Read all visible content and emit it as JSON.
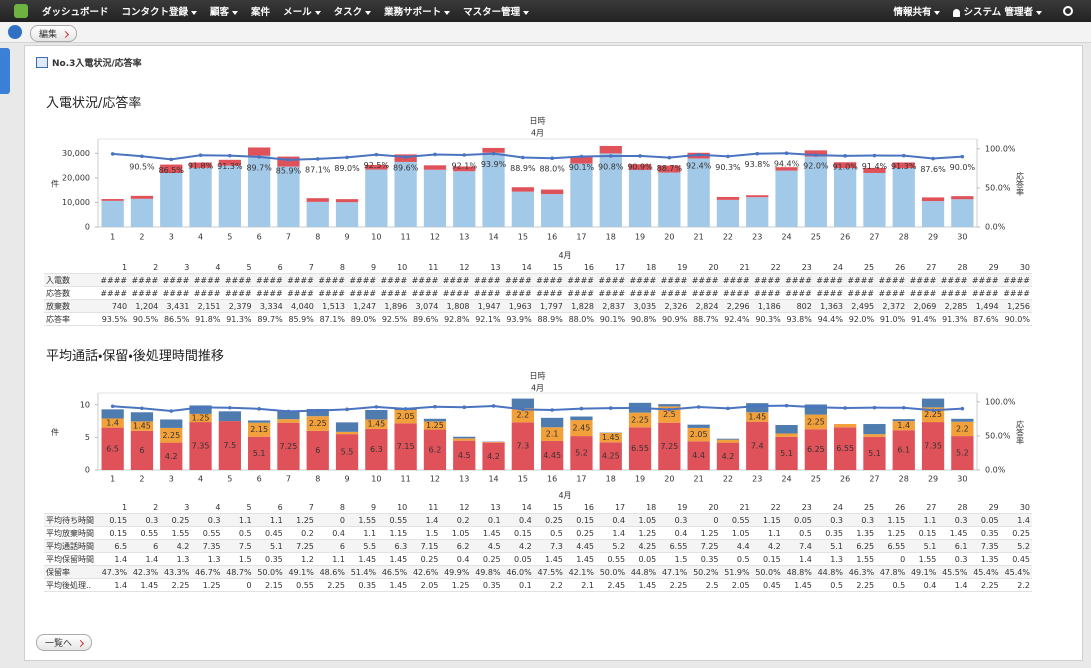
{
  "nav": {
    "items": [
      {
        "label": "ダッシュボード",
        "dropdown": false
      },
      {
        "label": "コンタクト登録",
        "dropdown": true
      },
      {
        "label": "顧客",
        "dropdown": true
      },
      {
        "label": "案件",
        "dropdown": false
      },
      {
        "label": "メール",
        "dropdown": true
      },
      {
        "label": "タスク",
        "dropdown": true
      },
      {
        "label": "業務サポート",
        "dropdown": true
      },
      {
        "label": "マスター管理",
        "dropdown": true
      }
    ],
    "right": [
      {
        "label": "情報共有",
        "dropdown": true
      },
      {
        "label": "システム 管理者",
        "dropdown": true
      }
    ]
  },
  "toolbar": {
    "edit": "編集"
  },
  "panel_title": "No.3入電状況/応答率",
  "sections": [
    {
      "heading": "入電状況/応答率",
      "table": {
        "header": "4月",
        "columns": [
          1,
          2,
          3,
          4,
          5,
          6,
          7,
          8,
          9,
          10,
          11,
          12,
          13,
          14,
          15,
          16,
          17,
          18,
          19,
          20,
          21,
          22,
          23,
          24,
          25,
          26,
          27,
          28,
          29,
          30
        ],
        "rows": [
          {
            "label": "入電数",
            "cells": [
              "####",
              "####",
              "####",
              "####",
              "####",
              "####",
              "####",
              "####",
              "####",
              "####",
              "####",
              "####",
              "####",
              "####",
              "####",
              "####",
              "####",
              "####",
              "####",
              "####",
              "####",
              "####",
              "####",
              "####",
              "####",
              "####",
              "####",
              "####",
              "####",
              "####"
            ]
          },
          {
            "label": "応答数",
            "cells": [
              "####",
              "####",
              "####",
              "####",
              "####",
              "####",
              "####",
              "####",
              "####",
              "####",
              "####",
              "####",
              "####",
              "####",
              "####",
              "####",
              "####",
              "####",
              "####",
              "####",
              "####",
              "####",
              "####",
              "####",
              "####",
              "####",
              "####",
              "####",
              "####",
              "####"
            ]
          },
          {
            "label": "放棄数",
            "cells": [
              "740",
              "1,204",
              "3,431",
              "2,151",
              "2,379",
              "3,334",
              "4,040",
              "1,513",
              "1,247",
              "1,896",
              "3,074",
              "1,808",
              "1,947",
              "1,963",
              "1,797",
              "1,828",
              "2,837",
              "3,035",
              "2,326",
              "2,824",
              "2,296",
              "1,186",
              "802",
              "1,363",
              "2,495",
              "2,372",
              "2,069",
              "2,285",
              "1,494",
              "1,256"
            ]
          },
          {
            "label": "応答率",
            "cells": [
              "93.5%",
              "90.5%",
              "86.5%",
              "91.8%",
              "91.3%",
              "89.7%",
              "85.9%",
              "87.1%",
              "89.0%",
              "92.5%",
              "89.6%",
              "92.8%",
              "92.1%",
              "93.9%",
              "88.9%",
              "88.0%",
              "90.1%",
              "90.8%",
              "90.9%",
              "88.7%",
              "92.4%",
              "90.3%",
              "93.8%",
              "94.4%",
              "92.0%",
              "91.0%",
              "91.4%",
              "91.3%",
              "87.6%",
              "90.0%"
            ]
          }
        ]
      }
    },
    {
      "heading": "平均通話・保留・後処理時間推移",
      "table": {
        "header": "4月",
        "columns": [
          1,
          2,
          3,
          4,
          5,
          6,
          7,
          8,
          9,
          10,
          11,
          12,
          13,
          14,
          15,
          16,
          17,
          18,
          19,
          20,
          21,
          22,
          23,
          24,
          25,
          26,
          27,
          28,
          29,
          30
        ],
        "rows": [
          {
            "label": "平均待ち時間",
            "cells": [
              0.15,
              0.3,
              0.25,
              0.3,
              1.1,
              1.1,
              1.25,
              0,
              1.55,
              0.55,
              1.4,
              0.2,
              0.1,
              0.4,
              0.25,
              0.15,
              0.4,
              1.05,
              0.3,
              0,
              0.55,
              1.15,
              0.05,
              0.3,
              0.3,
              1.15,
              1.1,
              0.3,
              0.05,
              1.4
            ]
          },
          {
            "label": "平均放棄時間",
            "cells": [
              0.15,
              0.55,
              1.55,
              0.55,
              0.5,
              0.45,
              0.2,
              0.4,
              1.1,
              1.15,
              1.5,
              1.05,
              1.45,
              0.15,
              0.5,
              0.25,
              1.4,
              1.25,
              0.4,
              1.25,
              1.05,
              1.1,
              0.5,
              0.35,
              1.35,
              1.25,
              0.15,
              1.45,
              0.35,
              0.25
            ]
          },
          {
            "label": "平均通話時間",
            "cells": [
              6.5,
              6,
              4.2,
              7.35,
              7.5,
              5.1,
              7.25,
              6,
              5.5,
              6.3,
              7.15,
              6.2,
              4.5,
              4.2,
              7.3,
              4.45,
              5.2,
              4.25,
              6.55,
              7.25,
              4.4,
              4.2,
              7.4,
              5.1,
              6.25,
              6.55,
              5.1,
              6.1,
              7.35,
              5.2
            ]
          },
          {
            "label": "平均保留時間",
            "cells": [
              1.4,
              1.4,
              1.3,
              1.3,
              1.5,
              0.35,
              1.2,
              1.1,
              1.45,
              1.45,
              0.25,
              0.4,
              0.25,
              0.05,
              1.45,
              1.45,
              0.55,
              0.05,
              1.5,
              0.35,
              0.5,
              0.15,
              1.4,
              1.3,
              1.55,
              0,
              1.55,
              0.3,
              1.35,
              0.45
            ]
          },
          {
            "label": "保留率",
            "cells": [
              "47.3%",
              "42.3%",
              "43.3%",
              "46.7%",
              "48.7%",
              "50.0%",
              "49.1%",
              "48.6%",
              "51.4%",
              "46.5%",
              "42.6%",
              "49.9%",
              "49.8%",
              "46.0%",
              "47.5%",
              "42.1%",
              "50.0%",
              "44.8%",
              "47.1%",
              "50.2%",
              "51.9%",
              "50.0%",
              "48.8%",
              "44.8%",
              "46.3%",
              "47.8%",
              "49.1%",
              "45.5%",
              "45.4%",
              "45.4%"
            ]
          },
          {
            "label": "平均後処理..",
            "cells": [
              1.4,
              1.45,
              2.25,
              1.25,
              0,
              2.15,
              0.55,
              2.25,
              0.35,
              1.45,
              2.05,
              1.25,
              0.35,
              0.1,
              2.2,
              2.1,
              2.45,
              1.45,
              2.25,
              2.5,
              2.05,
              0.45,
              1.45,
              0.5,
              2.25,
              0.5,
              0.4,
              1.4,
              2.25,
              2.2
            ]
          }
        ]
      }
    }
  ],
  "chart_data": [
    {
      "type": "bar",
      "stacked": true,
      "title": "日時",
      "subtitle": "4月",
      "y_label": "件",
      "y2_label": "応答率",
      "categories": [
        1,
        2,
        3,
        4,
        5,
        6,
        7,
        8,
        9,
        10,
        11,
        12,
        13,
        14,
        15,
        16,
        17,
        18,
        19,
        20,
        21,
        22,
        23,
        24,
        25,
        26,
        27,
        28,
        29,
        30
      ],
      "series": [
        {
          "color": "#a3c9e9",
          "values": [
            10640,
            11470,
            21980,
            24080,
            24970,
            29030,
            24610,
            10220,
            10090,
            23380,
            26480,
            23300,
            22700,
            30220,
            14390,
            13410,
            25820,
            29950,
            23230,
            22170,
            27910,
            11040,
            12130,
            22980,
            28690,
            23980,
            21990,
            23980,
            10550,
            11300
          ]
        },
        {
          "color": "#e0525a",
          "values": [
            740,
            1204,
            3431,
            2151,
            2379,
            3334,
            4040,
            1513,
            1247,
            1896,
            3074,
            1808,
            1947,
            1963,
            1797,
            1828,
            2837,
            3035,
            2326,
            2824,
            2296,
            1186,
            802,
            1363,
            2495,
            2372,
            2069,
            2285,
            1494,
            1256
          ]
        },
        {
          "type": "line",
          "axis": "y2",
          "color": "#4a74c0",
          "values": [
            93.5,
            90.5,
            86.5,
            91.8,
            91.3,
            89.7,
            85.9,
            87.1,
            89.0,
            92.5,
            89.6,
            92.8,
            92.1,
            93.9,
            88.9,
            88.0,
            90.1,
            90.8,
            90.9,
            88.7,
            92.4,
            90.3,
            93.8,
            94.4,
            92.0,
            91.0,
            91.4,
            91.3,
            87.6,
            90.0
          ],
          "value_labels": [
            null,
            "90.5%",
            "86.5%",
            "91.8%",
            "91.3%",
            "89.7%",
            "85.9%",
            "87.1%",
            "89.0%",
            "92.5%",
            "89.6%",
            null,
            "92.1%",
            "93.9%",
            "88.9%",
            "88.0%",
            "90.1%",
            "90.8%",
            "90.9%",
            "88.7%",
            "92.4%",
            "90.3%",
            "93.8%",
            "94.4%",
            "92.0%",
            "91.0%",
            "91.4%",
            "91.3%",
            "87.6%",
            "90.0%"
          ]
        }
      ],
      "ylim": [
        0,
        35000
      ],
      "yticks": [
        0,
        {
          "value": 10000,
          "label": "10,000"
        },
        {
          "value": 20000,
          "label": "20,000"
        },
        {
          "value": 30000,
          "label": "30,000"
        }
      ],
      "y2lim": [
        0,
        110
      ],
      "y2ticks": [
        {
          "value": 0,
          "label": "0.0%"
        },
        {
          "value": 50,
          "label": "50.0%"
        },
        {
          "value": 100,
          "label": "100.0%"
        }
      ]
    },
    {
      "type": "bar",
      "stacked": true,
      "title": "日時",
      "subtitle": "4月",
      "y_label": "件",
      "y2_label": "応答率",
      "categories": [
        1,
        2,
        3,
        4,
        5,
        6,
        7,
        8,
        9,
        10,
        11,
        12,
        13,
        14,
        15,
        16,
        17,
        18,
        19,
        20,
        21,
        22,
        23,
        24,
        25,
        26,
        27,
        28,
        29,
        30
      ],
      "series": [
        {
          "color": "#e0525a",
          "data_labels": true,
          "values": [
            6.5,
            6,
            4.2,
            7.35,
            7.5,
            5.1,
            7.25,
            6,
            5.5,
            6.3,
            7.15,
            6.2,
            4.5,
            4.2,
            7.3,
            4.45,
            5.2,
            4.25,
            6.55,
            7.25,
            4.4,
            4.2,
            7.4,
            5.1,
            6.25,
            6.55,
            5.1,
            6.1,
            7.35,
            5.2
          ]
        },
        {
          "color": "#f2a03a",
          "data_labels": true,
          "values": [
            1.4,
            1.45,
            2.25,
            1.25,
            0,
            2.15,
            0.55,
            2.25,
            0.35,
            1.45,
            2.05,
            1.25,
            0.35,
            0.1,
            2.2,
            2.1,
            2.45,
            1.45,
            2.25,
            2.5,
            2.05,
            0.45,
            1.45,
            0.5,
            2.25,
            0.5,
            0.4,
            1.4,
            2.25,
            2.2
          ]
        },
        {
          "color": "#4f7cae",
          "values": [
            1.4,
            1.4,
            1.3,
            1.3,
            1.5,
            0.35,
            1.2,
            1.1,
            1.45,
            1.45,
            0.25,
            0.4,
            0.25,
            0.05,
            1.45,
            1.45,
            0.55,
            0.05,
            1.5,
            0.35,
            0.5,
            0.15,
            1.4,
            1.3,
            1.55,
            0,
            1.55,
            0.3,
            1.35,
            0.45
          ]
        },
        {
          "type": "line",
          "axis": "y2",
          "color": "#4a74c0",
          "values": [
            93.5,
            90.5,
            86.5,
            91.8,
            91.3,
            89.7,
            85.9,
            87.1,
            89.0,
            92.5,
            89.6,
            92.8,
            92.1,
            93.9,
            88.9,
            88.0,
            90.1,
            90.8,
            90.9,
            88.7,
            92.4,
            90.3,
            93.8,
            94.4,
            92.0,
            91.0,
            91.4,
            91.3,
            87.6,
            90.0
          ]
        }
      ],
      "ylim": [
        0,
        11.5
      ],
      "yticks": [
        0,
        5,
        10
      ],
      "y2lim": [
        0,
        110
      ],
      "y2ticks": [
        {
          "value": 0,
          "label": "0.0%"
        },
        {
          "value": 50,
          "label": "50.0%"
        },
        {
          "value": 100,
          "label": "100.0%"
        }
      ]
    }
  ],
  "back_button": "一覧へ"
}
